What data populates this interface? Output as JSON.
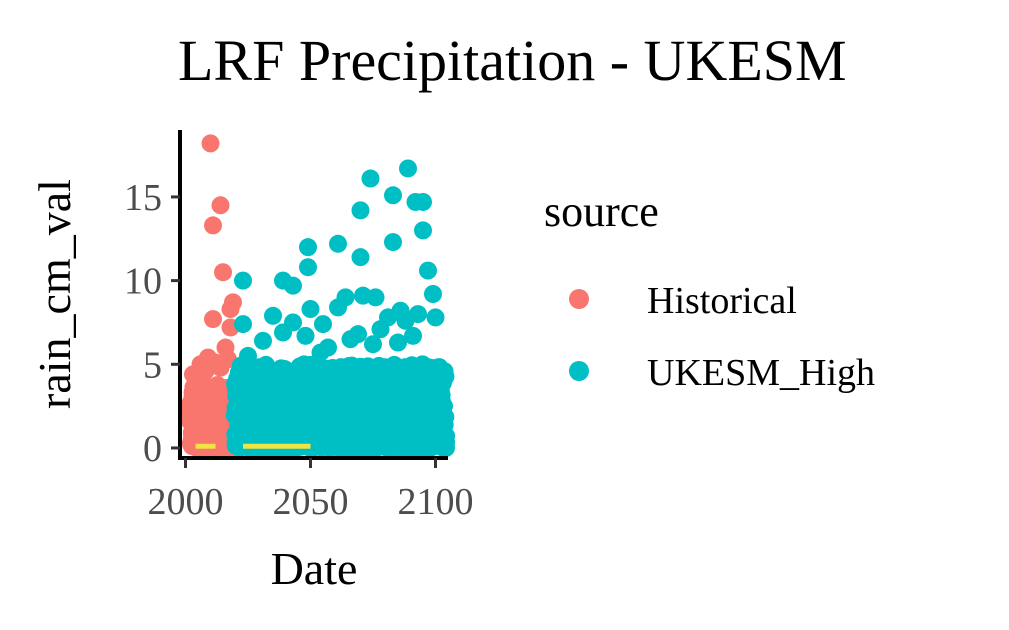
{
  "chart_data": {
    "type": "scatter",
    "title": "LRF Precipitation - UKESM",
    "xlabel": "Date",
    "ylabel": "rain_cm_val",
    "xlim": [
      1999,
      2105
    ],
    "ylim": [
      -0.6,
      19
    ],
    "x_ticks": [
      2000,
      2050,
      2100
    ],
    "x_tick_labels": [
      "2000",
      "2050",
      "2100"
    ],
    "y_ticks": [
      0,
      5,
      10,
      15
    ],
    "y_tick_labels": [
      "0",
      "5",
      "10",
      "15"
    ],
    "grid": false,
    "legend": {
      "title": "source",
      "placement": "right"
    },
    "series": [
      {
        "name": "Historical",
        "color": "#F8766D",
        "x_range": [
          2002,
          2019
        ],
        "points": [
          [
            2010,
            18.2
          ],
          [
            2014,
            14.5
          ],
          [
            2011,
            13.3
          ],
          [
            2015,
            10.5
          ],
          [
            2011,
            7.7
          ],
          [
            2019,
            8.7
          ],
          [
            2018,
            8.3
          ],
          [
            2016,
            6.0
          ],
          [
            2018,
            7.2
          ],
          [
            2006,
            5.0
          ],
          [
            2012,
            5.1
          ],
          [
            2003,
            4.4
          ],
          [
            2008,
            4.6
          ],
          [
            2014,
            4.8
          ],
          [
            2017,
            5.3
          ],
          [
            2009,
            5.4
          ]
        ],
        "dense_max": 3.8
      },
      {
        "name": "UKESM_High",
        "color": "#00BFC4",
        "x_range": [
          2020,
          2104
        ],
        "points": [
          [
            2089,
            16.7
          ],
          [
            2074,
            16.1
          ],
          [
            2083,
            15.1
          ],
          [
            2092,
            14.7
          ],
          [
            2095,
            14.7
          ],
          [
            2070,
            14.2
          ],
          [
            2095,
            13.0
          ],
          [
            2083,
            12.3
          ],
          [
            2061,
            12.2
          ],
          [
            2049,
            12.0
          ],
          [
            2070,
            11.4
          ],
          [
            2049,
            10.8
          ],
          [
            2097,
            10.6
          ],
          [
            2023,
            10.0
          ],
          [
            2039,
            10.0
          ],
          [
            2043,
            9.7
          ],
          [
            2099,
            9.2
          ],
          [
            2064,
            9.0
          ],
          [
            2071,
            9.1
          ],
          [
            2076,
            9.0
          ],
          [
            2061,
            8.4
          ],
          [
            2050,
            8.3
          ],
          [
            2086,
            8.2
          ],
          [
            2093,
            8.0
          ],
          [
            2035,
            7.9
          ],
          [
            2023,
            7.4
          ],
          [
            2043,
            7.5
          ],
          [
            2055,
            7.4
          ],
          [
            2081,
            7.8
          ],
          [
            2088,
            7.6
          ],
          [
            2100,
            7.8
          ],
          [
            2069,
            6.8
          ],
          [
            2078,
            7.1
          ],
          [
            2039,
            6.9
          ],
          [
            2031,
            6.4
          ],
          [
            2048,
            6.7
          ],
          [
            2057,
            6.0
          ],
          [
            2066,
            6.5
          ],
          [
            2091,
            6.7
          ],
          [
            2025,
            5.5
          ],
          [
            2054,
            5.7
          ],
          [
            2075,
            6.2
          ],
          [
            2085,
            6.3
          ]
        ],
        "dense_max": 5.0
      },
      {
        "name": "",
        "color": "#F0E442",
        "type": "segments",
        "segments": [
          [
            2004,
            2012,
            0.1
          ],
          [
            2023,
            2050,
            0.1
          ]
        ]
      }
    ]
  }
}
